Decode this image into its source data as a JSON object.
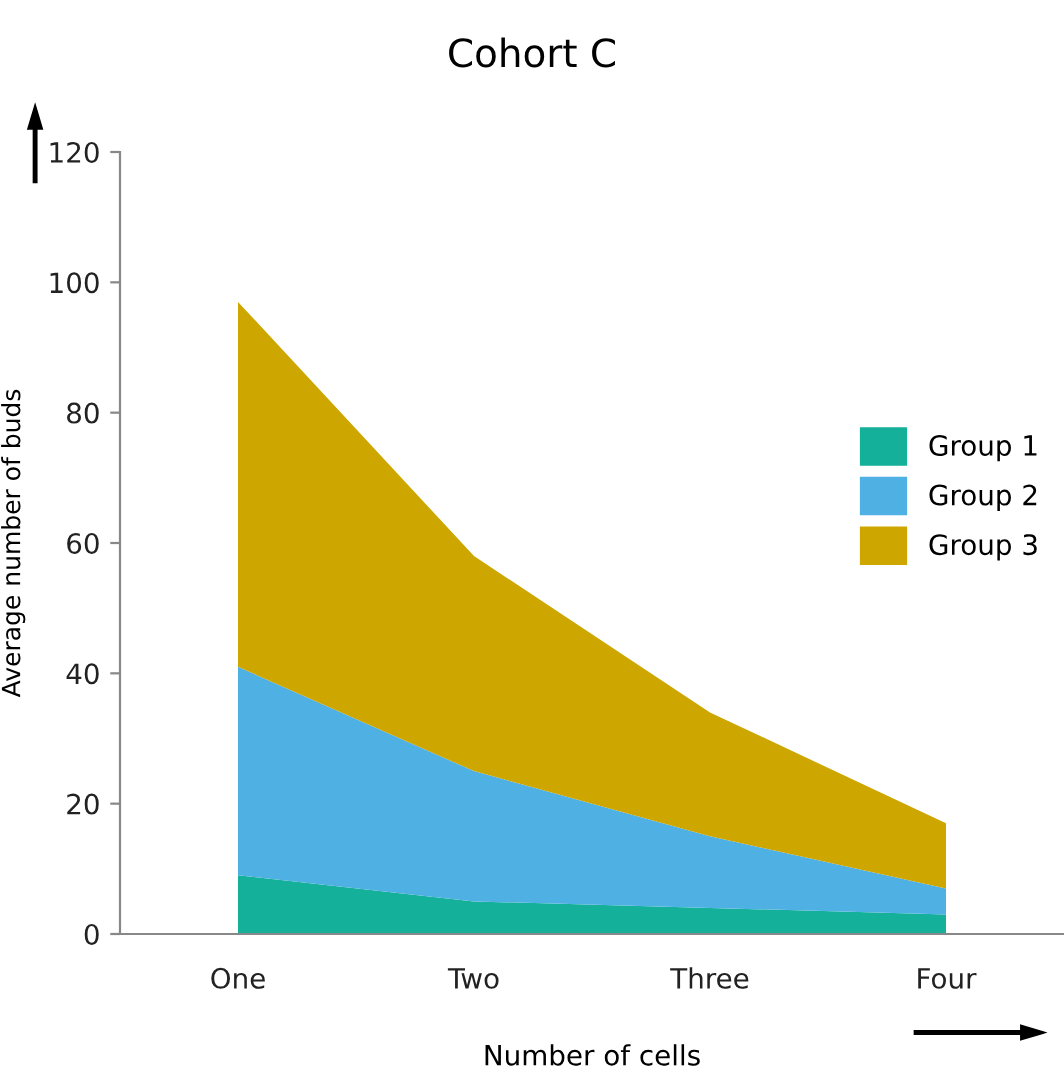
{
  "chart_data": {
    "type": "area",
    "title": "Cohort C",
    "xlabel": "Number of cells",
    "ylabel": "Average number of buds",
    "categories": [
      "One",
      "Two",
      "Three",
      "Four"
    ],
    "stacked": true,
    "series": [
      {
        "name": "Group 1",
        "color": "#14b09a",
        "values": [
          9,
          5,
          4,
          3
        ]
      },
      {
        "name": "Group 2",
        "color": "#4fb0e4",
        "values": [
          32,
          20,
          11,
          4
        ]
      },
      {
        "name": "Group 3",
        "color": "#cda600",
        "values": [
          56,
          33,
          19,
          10
        ]
      }
    ],
    "ylim": [
      0,
      120
    ],
    "yticks": [
      0,
      20,
      40,
      60,
      80,
      100,
      120
    ],
    "grid": false,
    "legend": "right"
  }
}
